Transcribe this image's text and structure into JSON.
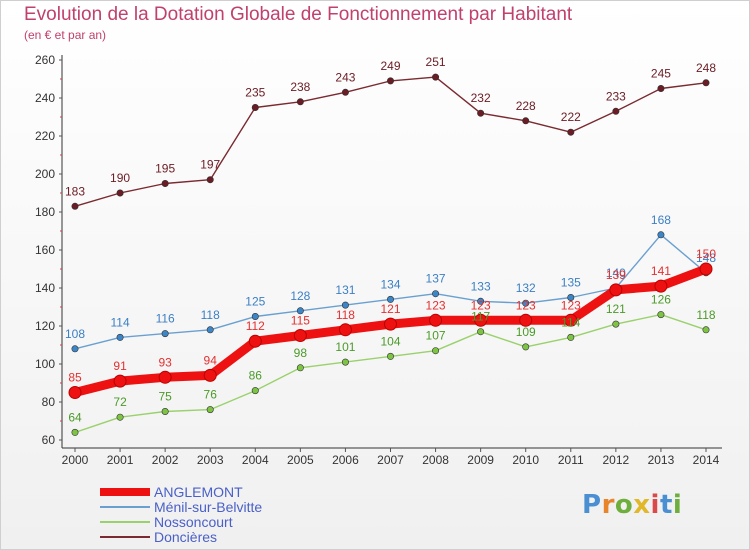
{
  "header": {
    "title": "Evolution de la Dotation Globale de Fonctionnement par Habitant",
    "subtitle": "(en € et par an)"
  },
  "logo": {
    "text": "Proxiti",
    "letters": [
      "P",
      "r",
      "o",
      "x",
      "i",
      "t",
      "i"
    ],
    "colors": [
      "#4a8fd1",
      "#e8842a",
      "#6dae3c",
      "#e0b82a",
      "#d94b4b",
      "#4a8fd1",
      "#6dae3c"
    ]
  },
  "chart_data": {
    "type": "line",
    "title": "Evolution de la Dotation Globale de Fonctionnement par Habitant",
    "subtitle": "(en € et par an)",
    "xlabel": "",
    "ylabel": "",
    "ylim": [
      60,
      260
    ],
    "yticks": [
      60,
      80,
      100,
      120,
      140,
      160,
      180,
      200,
      220,
      240,
      260
    ],
    "categories": [
      "2000",
      "2001",
      "2002",
      "2003",
      "2004",
      "2005",
      "2006",
      "2007",
      "2008",
      "2009",
      "2010",
      "2011",
      "2012",
      "2013",
      "2014"
    ],
    "grid": false,
    "legend_position": "bottom-left",
    "series": [
      {
        "name": "ANGLEMONT",
        "color": "#ee1111",
        "marker": "#ee1111",
        "text_color": "#e53030",
        "values": [
          85,
          91,
          93,
          94,
          112,
          115,
          118,
          121,
          123,
          123,
          123,
          123,
          139,
          141,
          150
        ]
      },
      {
        "name": "Ménil-sur-Belvitte",
        "color": "#6aa0d0",
        "marker": "#3c86c8",
        "text_color": "#3c7fc4",
        "values": [
          108,
          114,
          116,
          118,
          125,
          128,
          131,
          134,
          137,
          133,
          132,
          135,
          140,
          168,
          148
        ]
      },
      {
        "name": "Nossoncourt",
        "color": "#9ad16c",
        "marker": "#7cc442",
        "text_color": "#4c9a2a",
        "values": [
          64,
          72,
          75,
          76,
          86,
          98,
          101,
          104,
          107,
          117,
          109,
          114,
          121,
          126,
          118
        ]
      },
      {
        "name": "Doncières",
        "color": "#7a2a30",
        "marker": "#6b1c24",
        "text_color": "#6b1c24",
        "values": [
          183,
          190,
          195,
          197,
          235,
          238,
          243,
          249,
          251,
          232,
          228,
          222,
          233,
          245,
          248
        ]
      }
    ]
  }
}
